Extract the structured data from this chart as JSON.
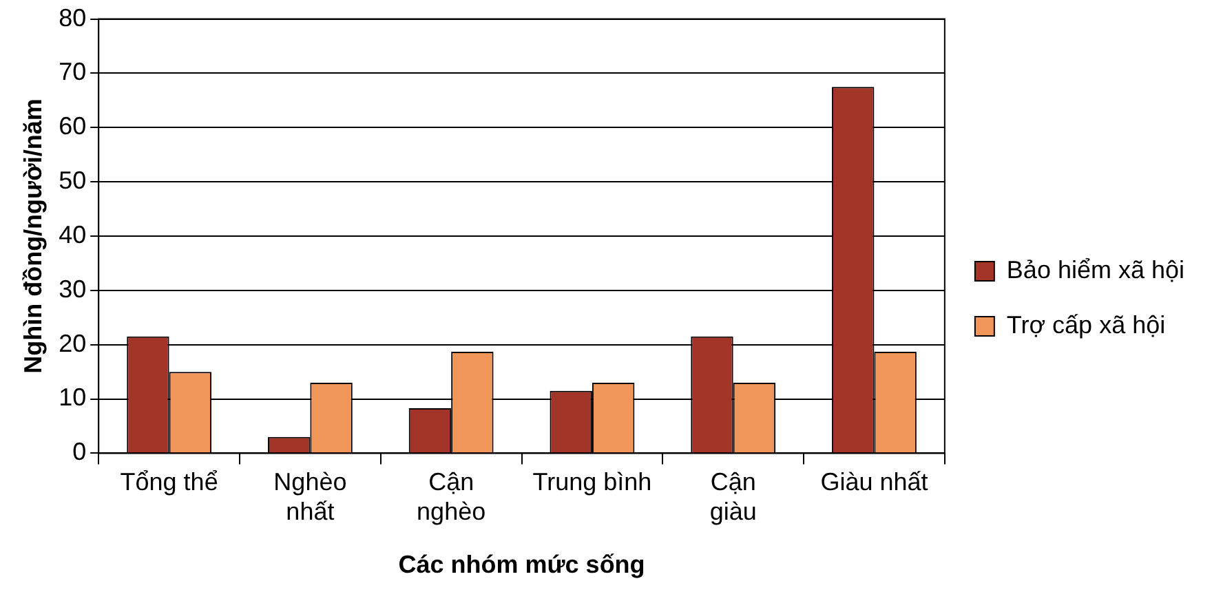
{
  "chart_data": {
    "type": "bar",
    "xlabel": "Các nhóm mức sống",
    "ylabel": "Nghìn đồng/người/năm",
    "categories": [
      "Tổng thể",
      "Nghèo\nnhất",
      "Cận\nnghèo",
      "Trung bình",
      "Cận\ngiàu",
      "Giàu nhất"
    ],
    "series": [
      {
        "name": "Bảo hiểm xã hội",
        "color": "#a33428",
        "values": [
          21.5,
          3,
          8.3,
          11.5,
          21.5,
          67.5
        ]
      },
      {
        "name": "Trợ cấp xã hội",
        "color": "#f0965a",
        "values": [
          15,
          13,
          18.7,
          13,
          13,
          18.7
        ]
      }
    ],
    "ylim": [
      0,
      80
    ],
    "yticks": [
      0,
      10,
      20,
      30,
      40,
      50,
      60,
      70,
      80
    ],
    "grid": "y",
    "legend": "right"
  }
}
